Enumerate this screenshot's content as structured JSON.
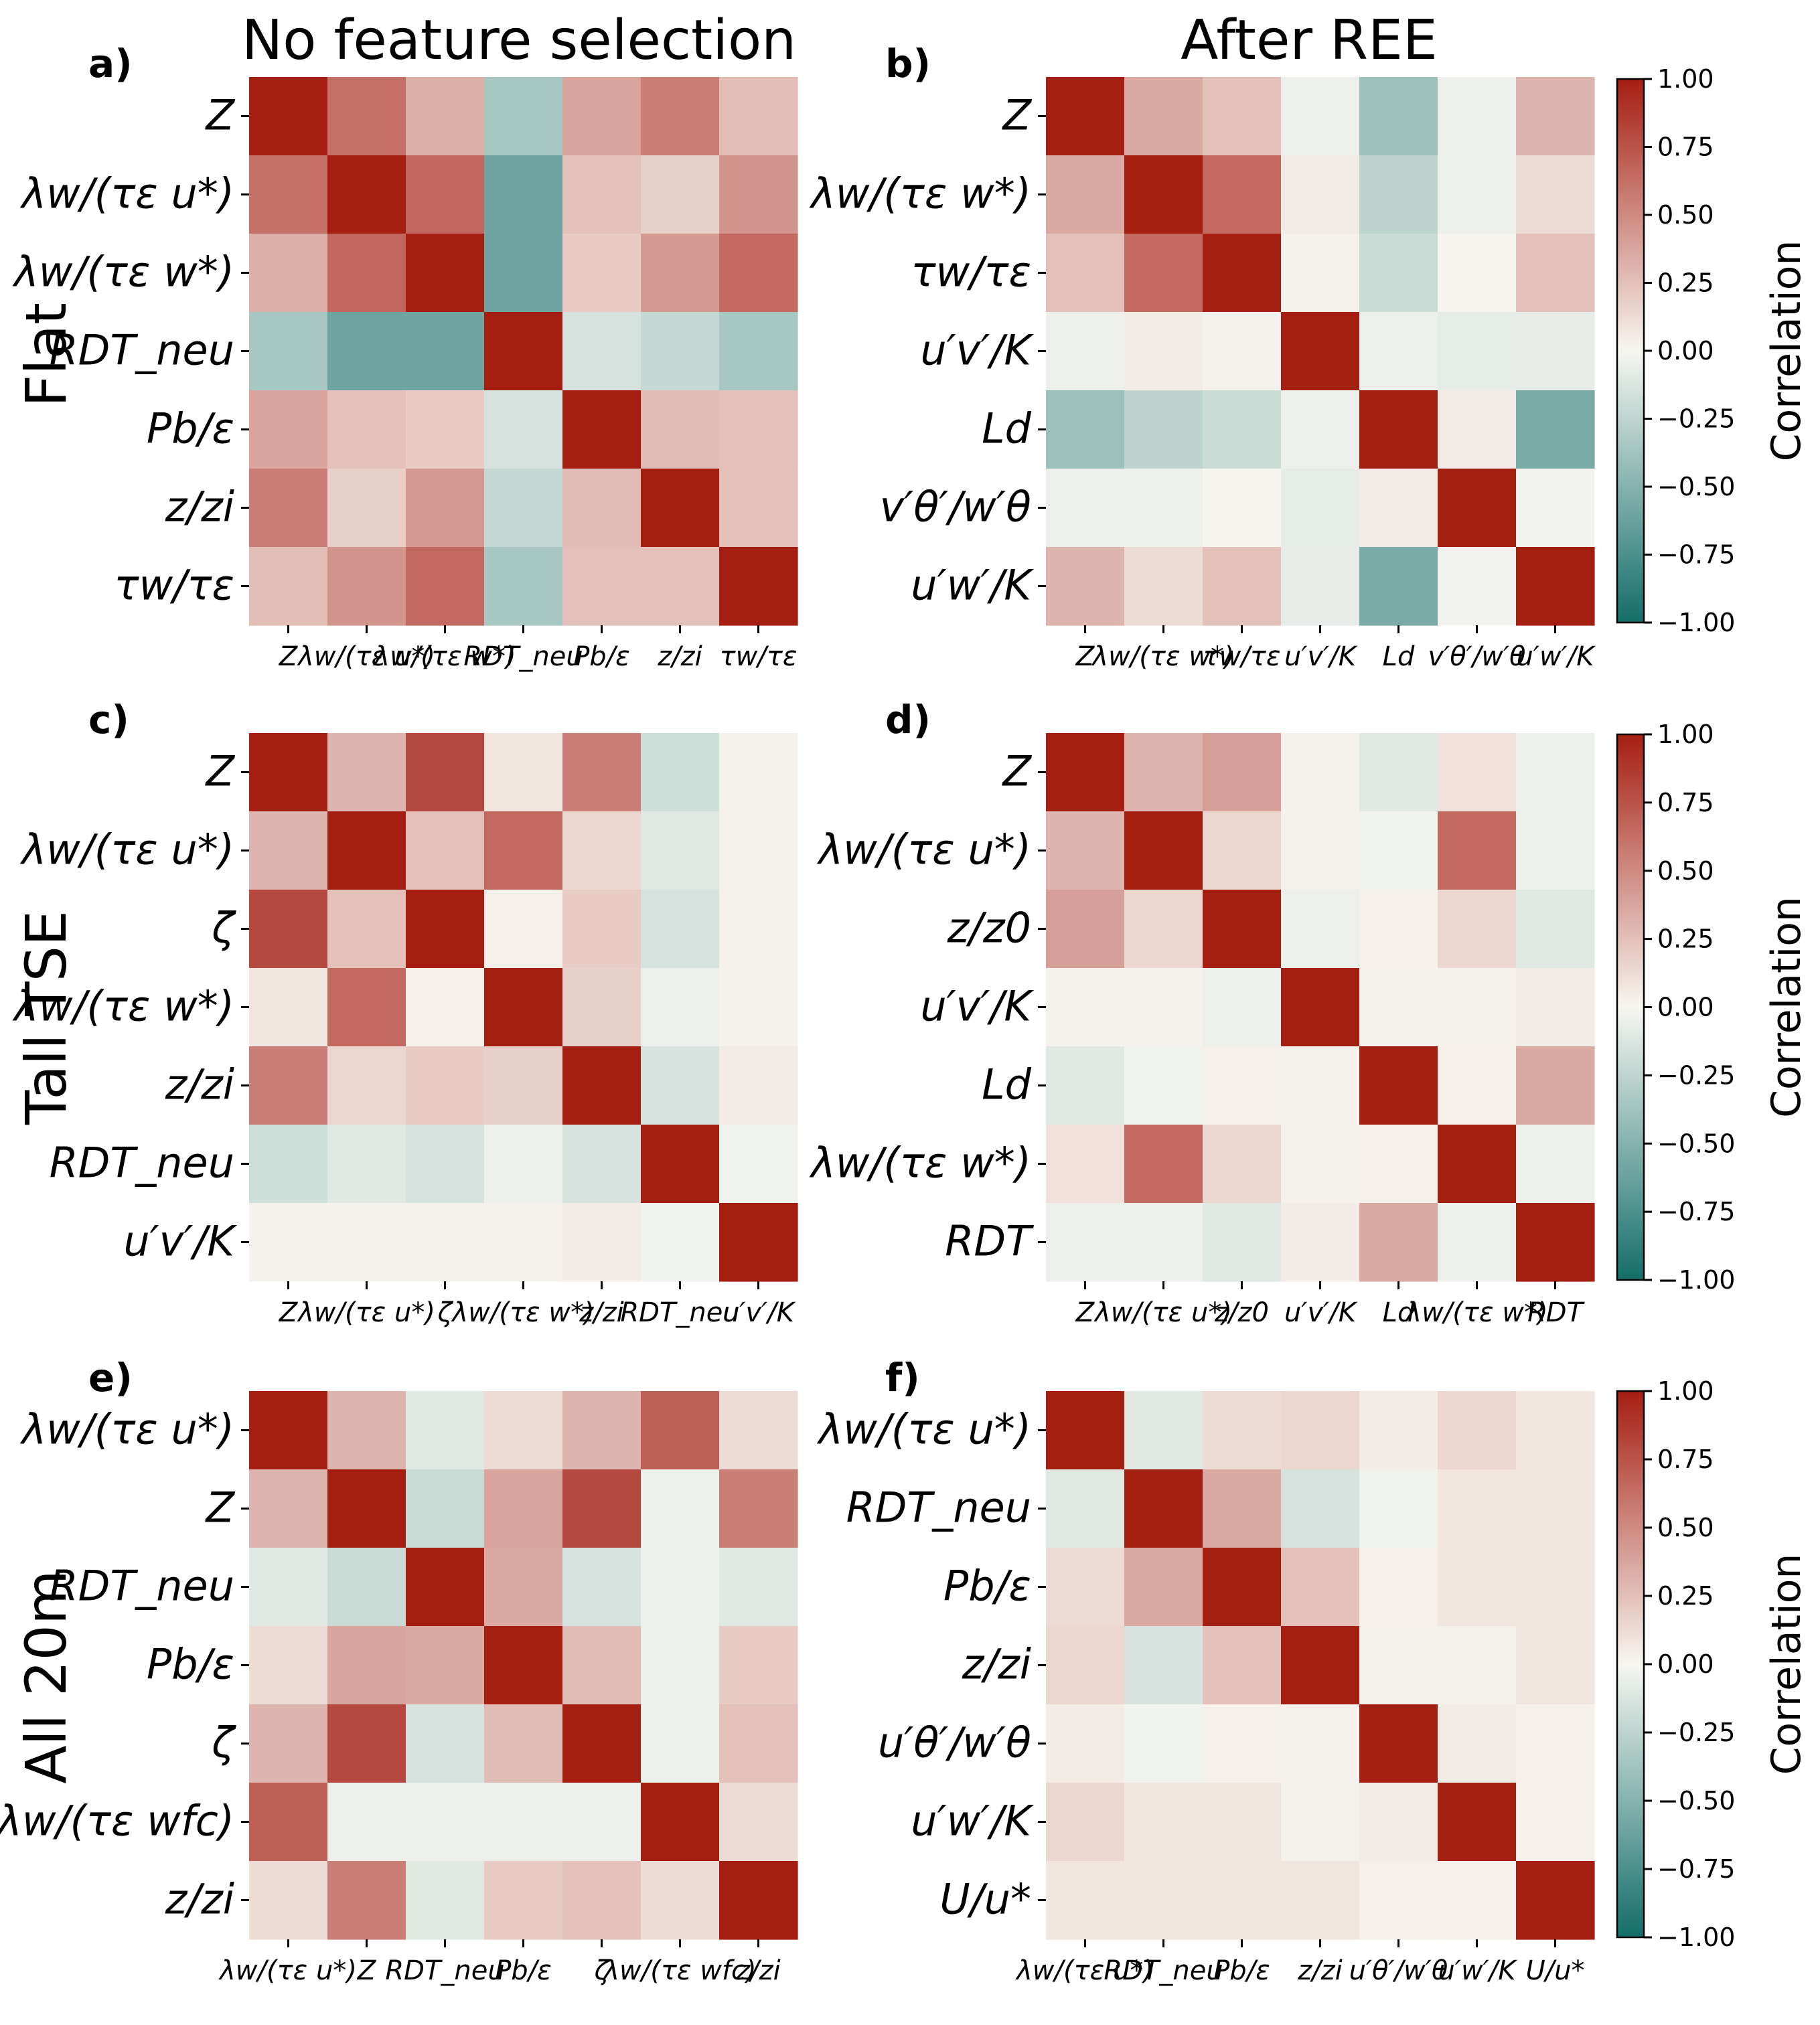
{
  "figure": {
    "column_titles": [
      "No feature selection",
      "After REE"
    ],
    "row_titles": [
      "Flat",
      "Tall TSE",
      "All 20m"
    ],
    "colormap": {
      "low": "#146e6a",
      "mid": "#f7f6f1",
      "high": "#a51e12"
    }
  },
  "chart_data": [
    {
      "type": "heatmap",
      "panel_label": "a)",
      "row_label": "Flat",
      "column_title": "No feature selection",
      "labels": [
        "Z",
        "λw/(τε u*)",
        "λw/(τε w*)",
        "RDT_neu",
        "Pb/ε",
        "z/zi",
        "τw/τε"
      ],
      "values": [
        [
          1.0,
          0.62,
          0.33,
          -0.35,
          0.38,
          0.56,
          0.26
        ],
        [
          0.62,
          1.0,
          0.66,
          -0.6,
          0.25,
          0.18,
          0.45
        ],
        [
          0.33,
          0.66,
          1.0,
          -0.6,
          0.2,
          0.42,
          0.65
        ],
        [
          -0.35,
          -0.6,
          -0.6,
          1.0,
          -0.15,
          -0.22,
          -0.35
        ],
        [
          0.38,
          0.25,
          0.2,
          -0.15,
          1.0,
          0.27,
          0.25
        ],
        [
          0.56,
          0.18,
          0.42,
          -0.22,
          0.27,
          1.0,
          0.25
        ],
        [
          0.26,
          0.45,
          0.65,
          -0.35,
          0.25,
          0.25,
          1.0
        ]
      ],
      "vmin": -1,
      "vmax": 1
    },
    {
      "type": "heatmap",
      "panel_label": "b)",
      "row_label": "Flat",
      "column_title": "After REE",
      "labels": [
        "Z",
        "λw/(τε w*)",
        "τw/τε",
        "u′v′/K",
        "Ld",
        "v′θ′/w′θ",
        "u′w′/K"
      ],
      "values": [
        [
          1.0,
          0.35,
          0.25,
          -0.05,
          -0.4,
          -0.05,
          0.3
        ],
        [
          0.35,
          1.0,
          0.65,
          0.05,
          -0.25,
          -0.05,
          0.12
        ],
        [
          0.25,
          0.65,
          1.0,
          0.02,
          -0.2,
          0.01,
          0.25
        ],
        [
          -0.05,
          0.05,
          0.02,
          1.0,
          -0.05,
          -0.08,
          -0.07
        ],
        [
          -0.4,
          -0.25,
          -0.2,
          -0.05,
          1.0,
          0.05,
          -0.55
        ],
        [
          -0.05,
          -0.05,
          0.01,
          -0.08,
          0.05,
          1.0,
          -0.02
        ],
        [
          0.3,
          0.12,
          0.25,
          -0.07,
          -0.55,
          -0.02,
          1.0
        ]
      ],
      "vmin": -1,
      "vmax": 1
    },
    {
      "type": "heatmap",
      "panel_label": "c)",
      "row_label": "Tall TSE",
      "column_title": "No feature selection",
      "labels": [
        "Z",
        "λw/(τε u*)",
        "ζ",
        "λw/(τε w*)",
        "z/zi",
        "RDT_neu",
        "u′v′/K"
      ],
      "values": [
        [
          1.0,
          0.3,
          0.8,
          0.08,
          0.55,
          -0.18,
          0.02
        ],
        [
          0.3,
          1.0,
          0.25,
          0.65,
          0.15,
          -0.1,
          0.02
        ],
        [
          0.8,
          0.25,
          1.0,
          0.03,
          0.2,
          -0.15,
          0.02
        ],
        [
          0.08,
          0.65,
          0.03,
          1.0,
          0.18,
          -0.05,
          0.02
        ],
        [
          0.55,
          0.15,
          0.2,
          0.18,
          1.0,
          -0.15,
          0.05
        ],
        [
          -0.18,
          -0.1,
          -0.15,
          -0.05,
          -0.15,
          1.0,
          -0.03
        ],
        [
          0.02,
          0.02,
          0.02,
          0.02,
          0.05,
          -0.03,
          1.0
        ]
      ],
      "vmin": -1,
      "vmax": 1
    },
    {
      "type": "heatmap",
      "panel_label": "d)",
      "row_label": "Tall TSE",
      "column_title": "After REE",
      "labels": [
        "Z",
        "λw/(τε u*)",
        "z/z0",
        "u′v′/K",
        "Ld",
        "λw/(τε w*)",
        "RDT"
      ],
      "values": [
        [
          1.0,
          0.3,
          0.4,
          0.02,
          -0.1,
          0.1,
          -0.05
        ],
        [
          0.3,
          1.0,
          0.15,
          0.02,
          -0.03,
          0.65,
          -0.05
        ],
        [
          0.4,
          0.15,
          1.0,
          -0.05,
          0.03,
          0.15,
          -0.1
        ],
        [
          0.02,
          0.02,
          -0.05,
          1.0,
          0.02,
          0.02,
          0.05
        ],
        [
          -0.1,
          -0.03,
          0.03,
          0.02,
          1.0,
          0.03,
          0.35
        ],
        [
          0.1,
          0.65,
          0.15,
          0.02,
          0.03,
          1.0,
          -0.05
        ],
        [
          -0.05,
          -0.05,
          -0.1,
          0.05,
          0.35,
          -0.05,
          1.0
        ]
      ],
      "vmin": -1,
      "vmax": 1
    },
    {
      "type": "heatmap",
      "panel_label": "e)",
      "row_label": "All 20m",
      "column_title": "No feature selection",
      "labels": [
        "λw/(τε u*)",
        "Z",
        "RDT_neu",
        "Pb/ε",
        "ζ",
        "λw/(τε wfc)",
        "z/zi"
      ],
      "values": [
        [
          1.0,
          0.3,
          -0.1,
          0.12,
          0.3,
          0.7,
          0.12
        ],
        [
          0.3,
          1.0,
          -0.2,
          0.38,
          0.8,
          -0.05,
          0.55
        ],
        [
          -0.1,
          -0.2,
          1.0,
          0.35,
          -0.15,
          -0.05,
          -0.1
        ],
        [
          0.12,
          0.38,
          0.35,
          1.0,
          0.27,
          -0.05,
          0.2
        ],
        [
          0.3,
          0.8,
          -0.15,
          0.27,
          1.0,
          -0.05,
          0.25
        ],
        [
          0.7,
          -0.05,
          -0.05,
          -0.05,
          -0.05,
          1.0,
          0.12
        ],
        [
          0.12,
          0.55,
          -0.1,
          0.2,
          0.25,
          0.12,
          1.0
        ]
      ],
      "vmin": -1,
      "vmax": 1
    },
    {
      "type": "heatmap",
      "panel_label": "f)",
      "row_label": "All 20m",
      "column_title": "After REE",
      "labels": [
        "λw/(τε u*)",
        "RDT_neu",
        "Pb/ε",
        "z/zi",
        "u′θ′/w′θ",
        "u′w′/K",
        "U/u*"
      ],
      "values": [
        [
          1.0,
          -0.1,
          0.12,
          0.15,
          0.05,
          0.15,
          0.08
        ],
        [
          -0.1,
          1.0,
          0.35,
          -0.15,
          -0.03,
          0.08,
          0.08
        ],
        [
          0.12,
          0.35,
          1.0,
          0.25,
          0.03,
          0.08,
          0.08
        ],
        [
          0.15,
          -0.15,
          0.25,
          1.0,
          0.02,
          0.02,
          0.08
        ],
        [
          0.05,
          -0.03,
          0.03,
          0.02,
          1.0,
          0.05,
          0.03
        ],
        [
          0.15,
          0.08,
          0.08,
          0.02,
          0.05,
          1.0,
          0.03
        ],
        [
          0.08,
          0.08,
          0.08,
          0.08,
          0.03,
          0.03,
          1.0
        ]
      ],
      "vmin": -1,
      "vmax": 1
    }
  ],
  "colorbar": {
    "label": "Correlation",
    "ticks": [
      1.0,
      0.75,
      0.5,
      0.25,
      0.0,
      -0.25,
      -0.5,
      -0.75,
      -1.0
    ],
    "tick_labels": [
      "1.00",
      "0.75",
      "0.50",
      "0.25",
      "0.00",
      "−0.25",
      "−0.50",
      "−0.75",
      "−1.00"
    ]
  }
}
